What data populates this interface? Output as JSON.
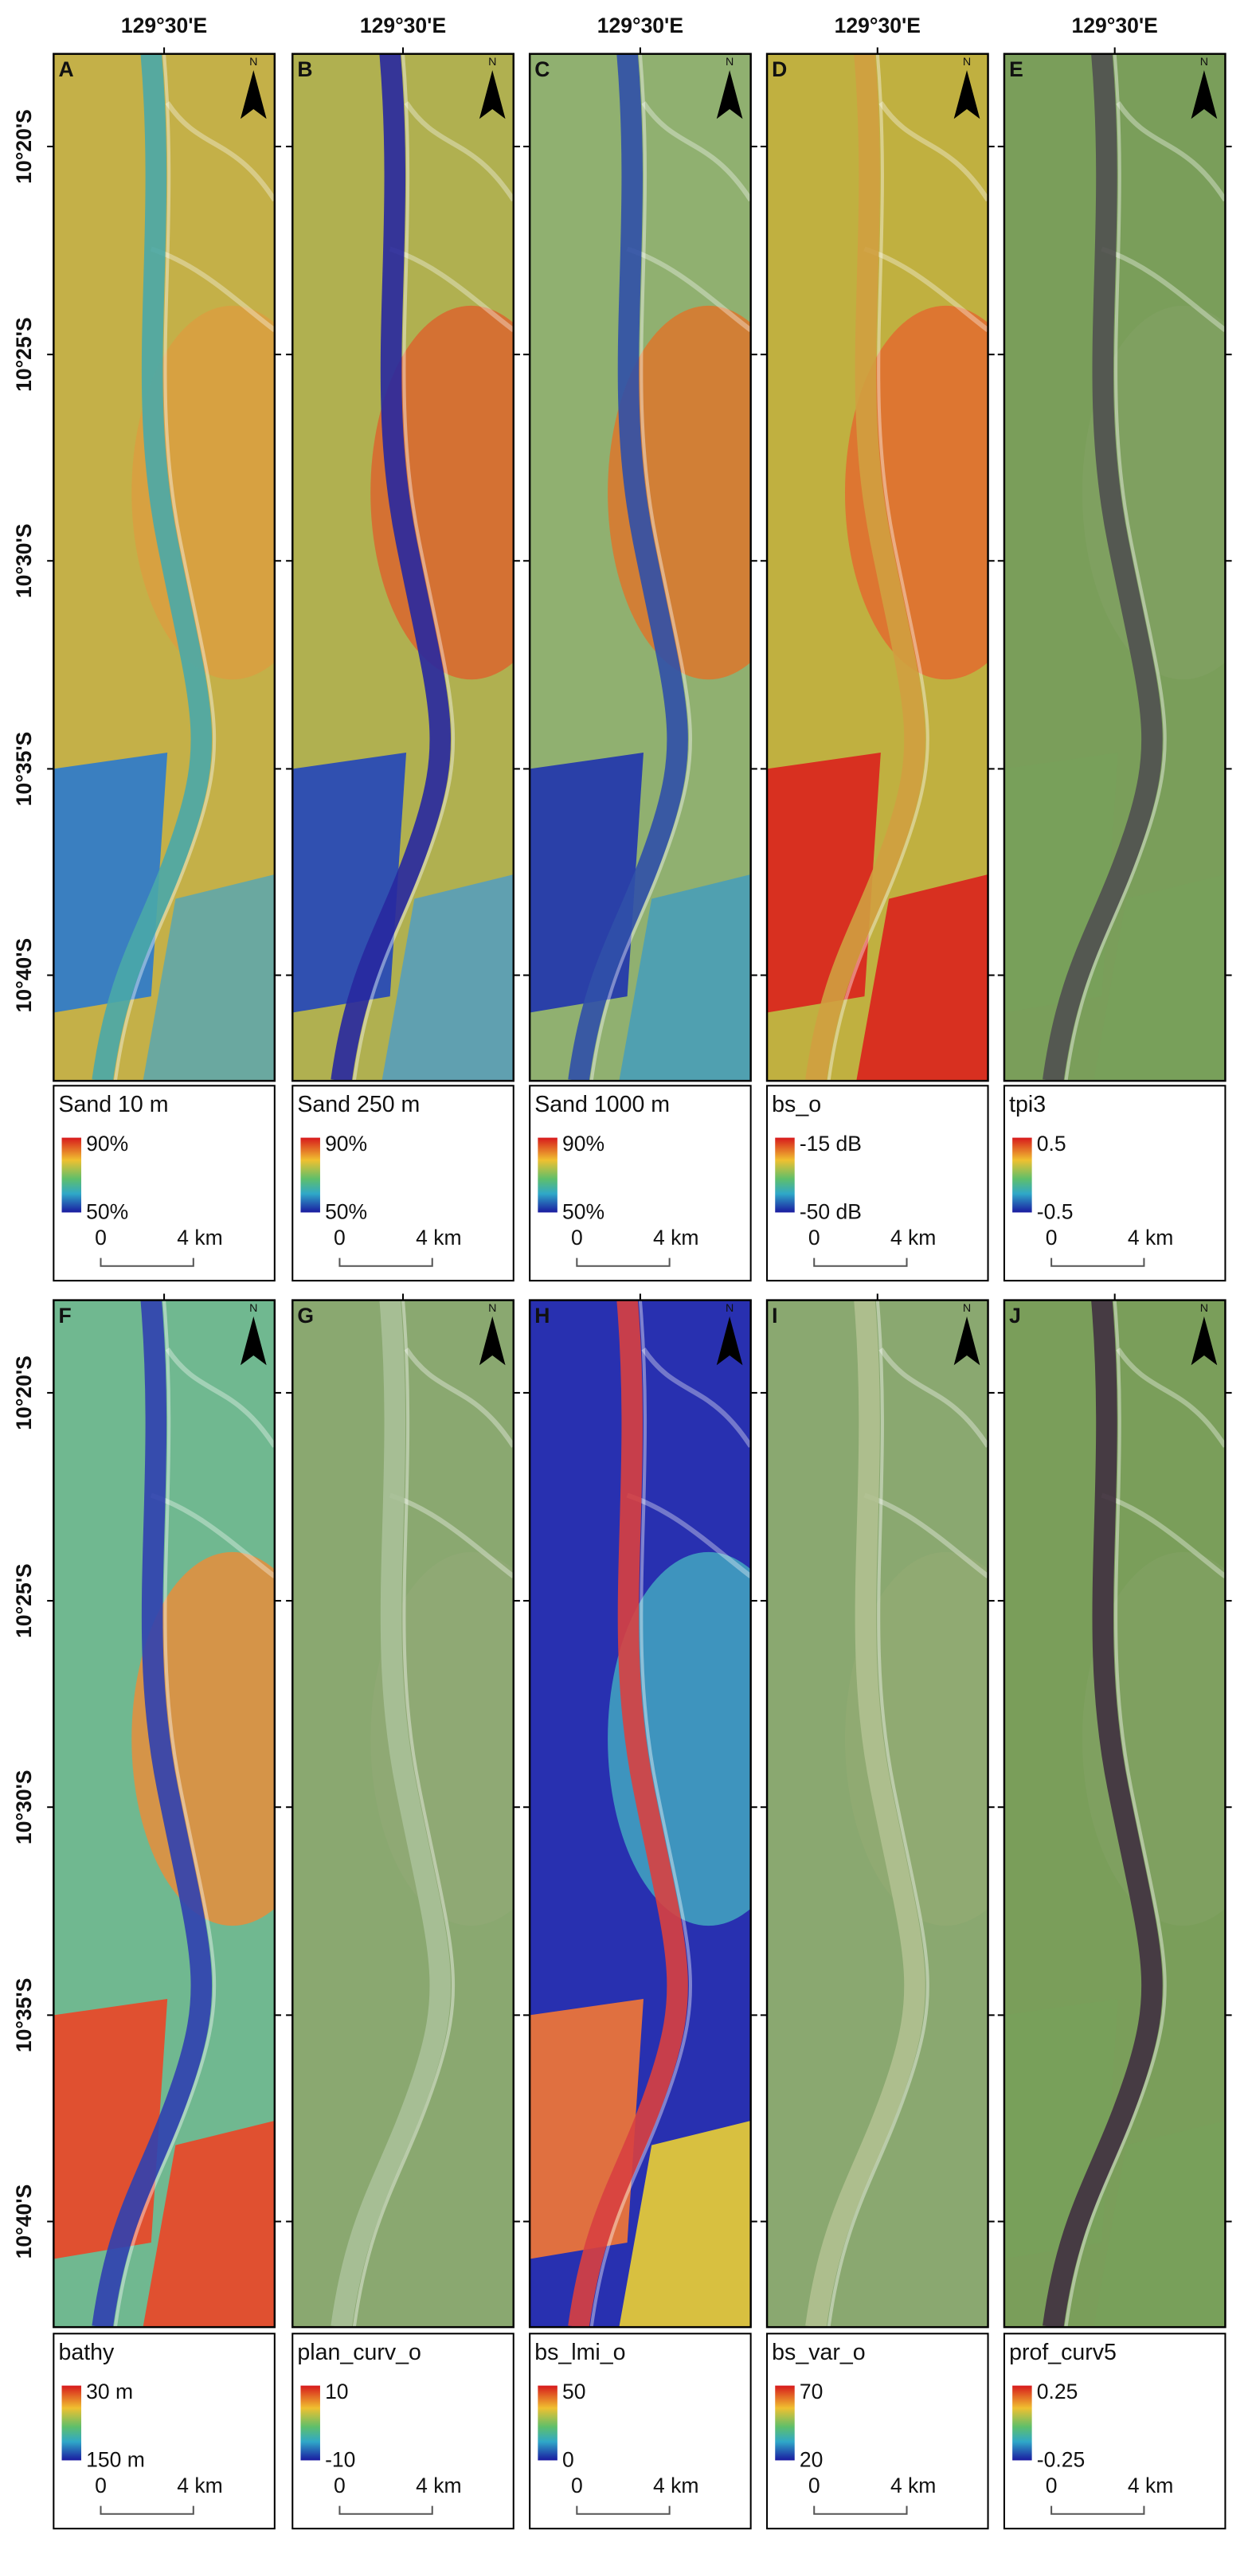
{
  "longitude_label": "129°30'E",
  "latitude_labels": [
    "10°20'S",
    "10°25'S",
    "10°30'S",
    "10°35'S",
    "10°40'S"
  ],
  "north_label": "N",
  "scale_bar": {
    "start": "0",
    "end": "4 km"
  },
  "rows": [
    {
      "panels": [
        {
          "letter": "A",
          "legend_title": "Sand 10 m",
          "max_label": "90%",
          "min_label": "50%"
        },
        {
          "letter": "B",
          "legend_title": "Sand 250 m",
          "max_label": "90%",
          "min_label": "50%"
        },
        {
          "letter": "C",
          "legend_title": "Sand 1000 m",
          "max_label": "90%",
          "min_label": "50%"
        },
        {
          "letter": "D",
          "legend_title": "bs_o",
          "max_label": "-15 dB",
          "min_label": "-50 dB"
        },
        {
          "letter": "E",
          "legend_title": "tpi3",
          "max_label": "0.5",
          "min_label": "-0.5"
        }
      ]
    },
    {
      "panels": [
        {
          "letter": "F",
          "legend_title": "bathy",
          "max_label": "30 m",
          "min_label": "150 m"
        },
        {
          "letter": "G",
          "legend_title": "plan_curv_o",
          "max_label": "10",
          "min_label": "-10"
        },
        {
          "letter": "H",
          "legend_title": "bs_lmi_o",
          "max_label": "50",
          "min_label": "0"
        },
        {
          "letter": "I",
          "legend_title": "bs_var_o",
          "max_label": "70",
          "min_label": "20"
        },
        {
          "letter": "J",
          "legend_title": "prof_curv5",
          "max_label": "0.25",
          "min_label": "-0.25"
        }
      ]
    }
  ]
}
